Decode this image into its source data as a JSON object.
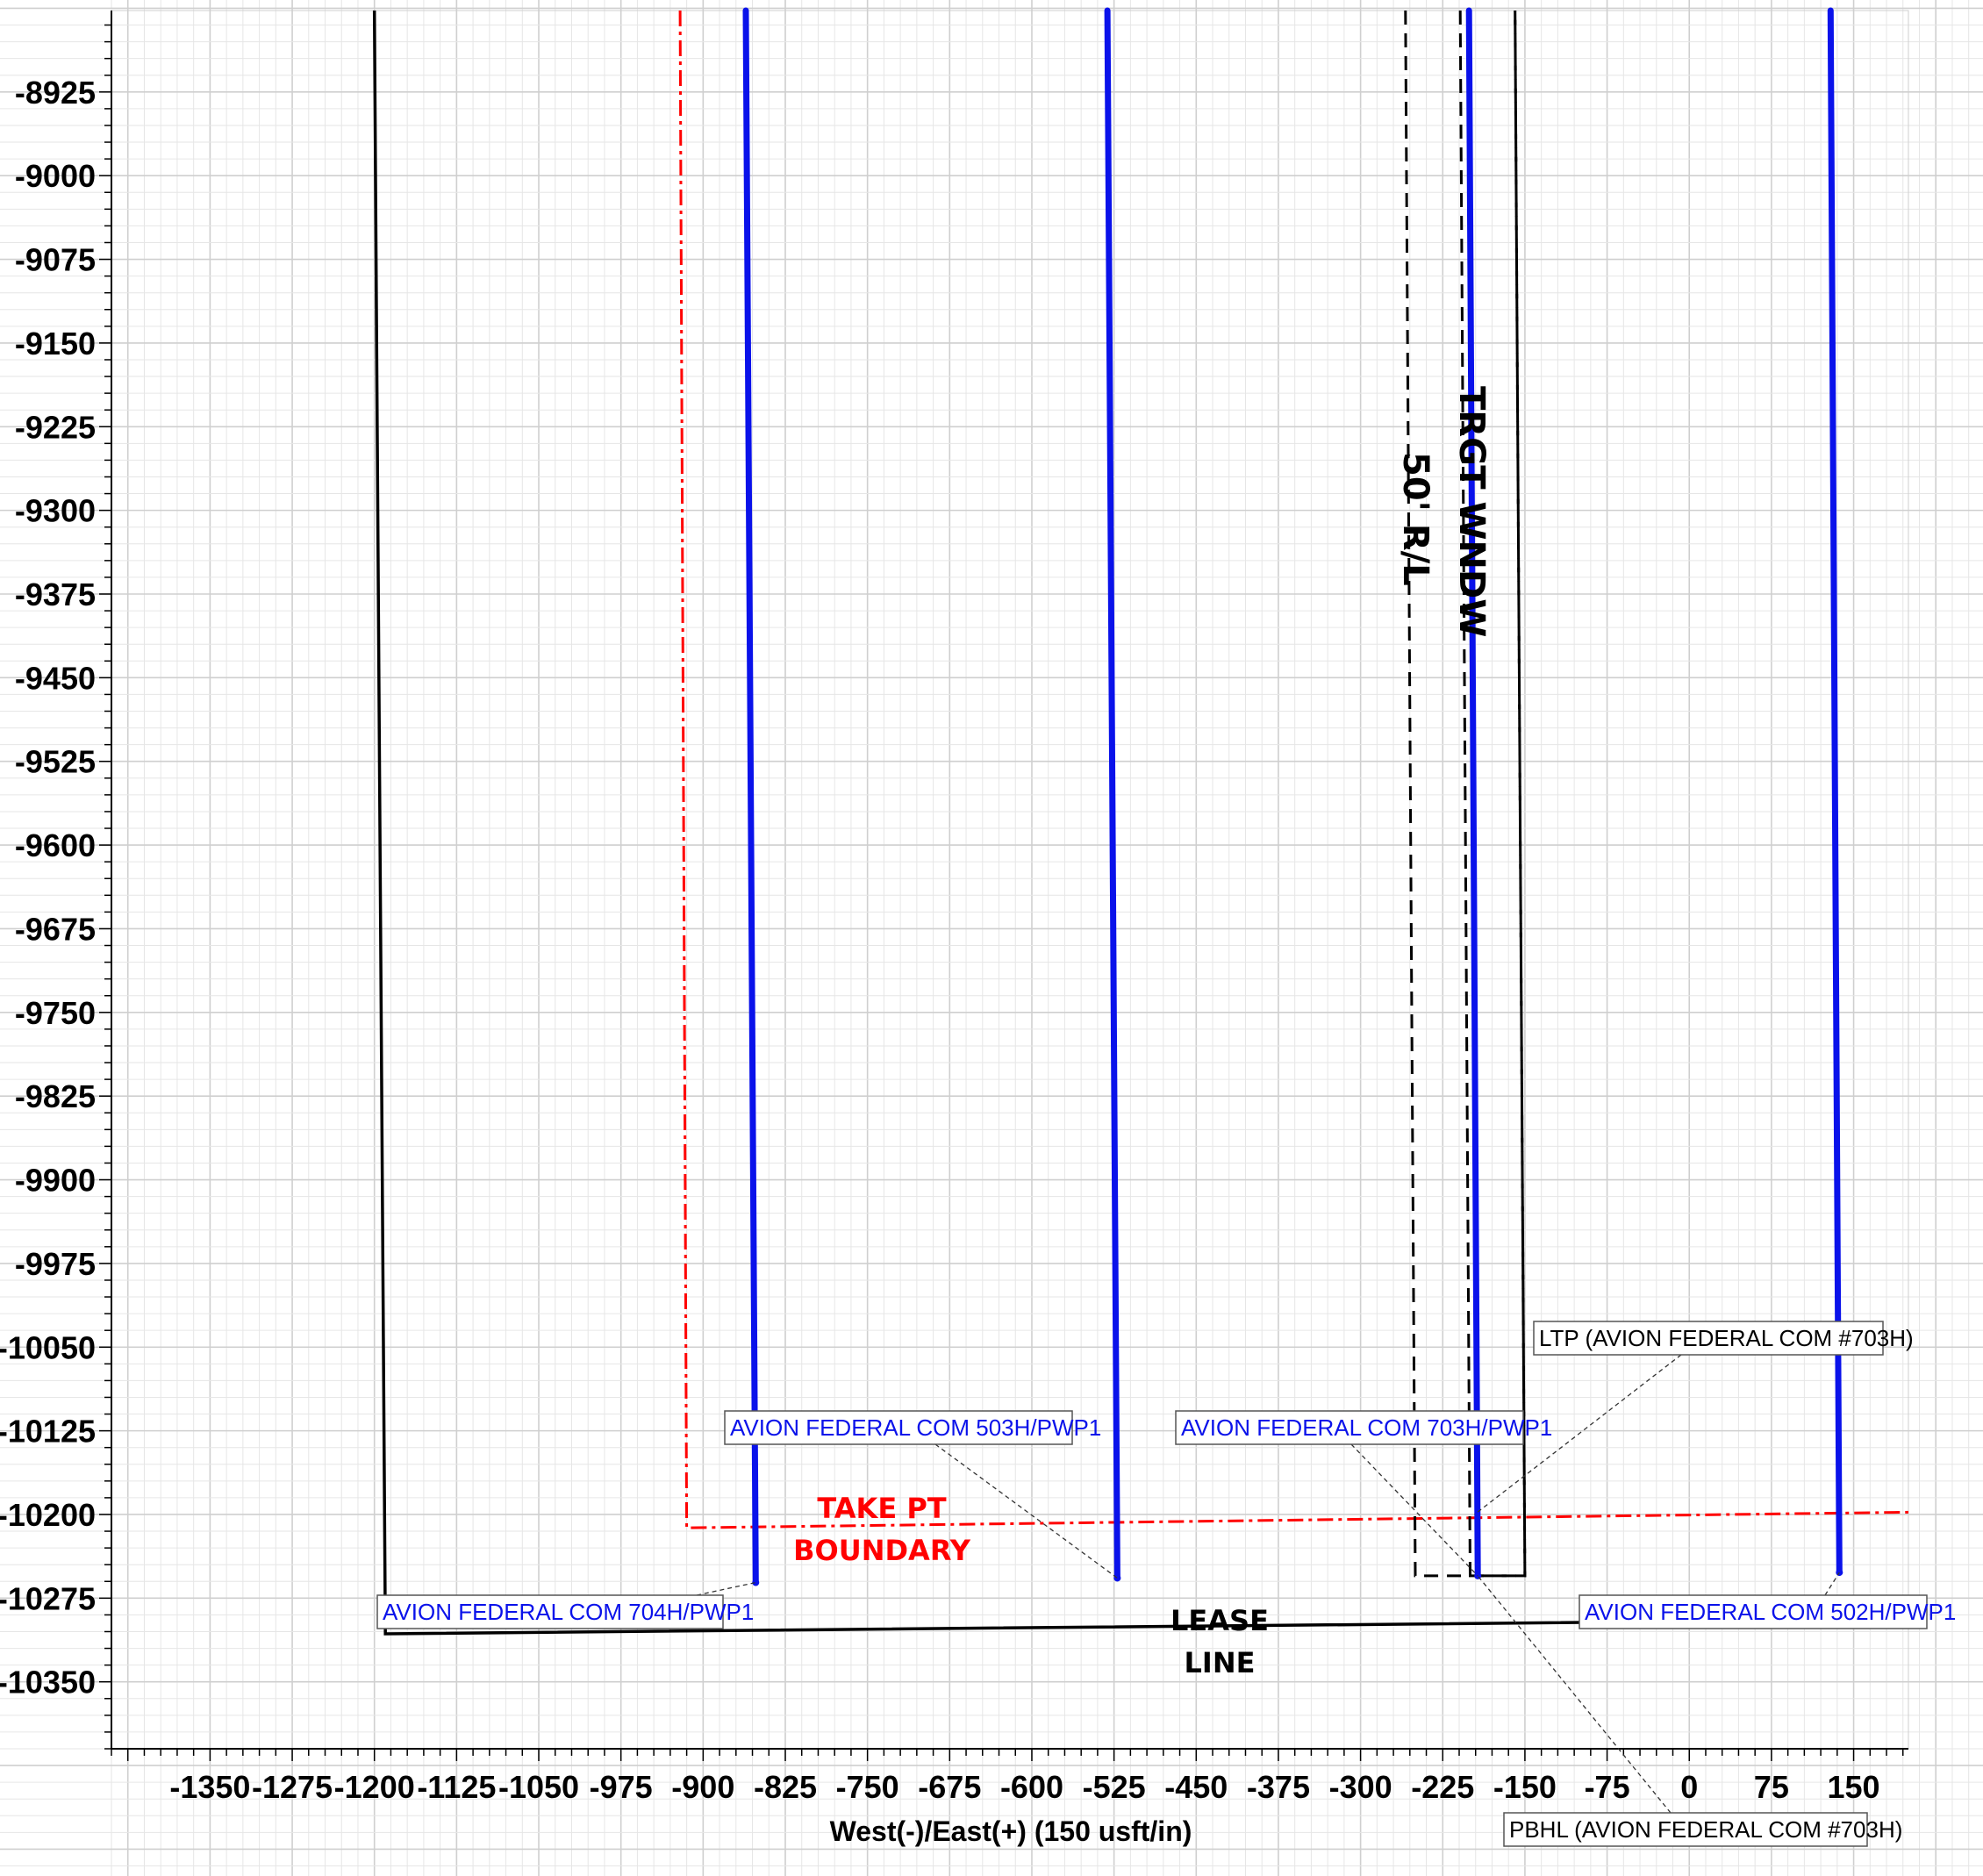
{
  "chart_data": {
    "type": "line",
    "xlabel": "West(-)/East(+) (150 usft/in)",
    "ylabel": "",
    "xlim": [
      -1440,
      200
    ],
    "ylim": [
      -10410,
      -8852
    ],
    "x_ticks": [
      -1350,
      -1275,
      -1200,
      -1125,
      -1050,
      -975,
      -900,
      -825,
      -750,
      -675,
      -600,
      -525,
      -450,
      -375,
      -300,
      -225,
      -150,
      -75,
      0,
      75,
      150
    ],
    "y_ticks": [
      -8925,
      -9000,
      -9075,
      -9150,
      -9225,
      -9300,
      -9375,
      -9450,
      -9525,
      -9600,
      -9675,
      -9750,
      -9825,
      -9900,
      -9975,
      -10050,
      -10125,
      -10200,
      -10275,
      -10350
    ],
    "grid": true,
    "series": [
      {
        "name": "AVION FEDERAL COM 704H/PWP1",
        "color": "#0a12ea",
        "points": [
          [
            -861,
            -8852
          ],
          [
            -852,
            -10261
          ]
        ]
      },
      {
        "name": "AVION FEDERAL COM 503H/PWP1",
        "color": "#0a12ea",
        "points": [
          [
            -531,
            -8852
          ],
          [
            -522,
            -10257
          ]
        ]
      },
      {
        "name": "AVION FEDERAL COM 703H/PWP1",
        "color": "#0a12ea",
        "points": [
          [
            -201,
            -8852
          ],
          [
            -193,
            -10255
          ]
        ]
      },
      {
        "name": "AVION FEDERAL COM 502H/PWP1",
        "color": "#0a12ea",
        "points": [
          [
            129,
            -8852
          ],
          [
            137,
            -10252
          ]
        ]
      }
    ],
    "lines": {
      "lease": {
        "color": "#000000",
        "points": [
          [
            -1200,
            -8852
          ],
          [
            -1190,
            -10307
          ],
          [
            200,
            -10294
          ]
        ]
      },
      "take_point": {
        "color": "#ff0000",
        "points": [
          [
            -921,
            -8852
          ],
          [
            -915,
            -10212
          ],
          [
            200,
            -10198
          ]
        ]
      },
      "rl_50": {
        "color": "#000000",
        "points": [
          [
            -259,
            -8852
          ],
          [
            -250,
            -10255
          ],
          [
            -150,
            -10255
          ],
          [
            -159,
            -8852
          ]
        ]
      },
      "trgt_window": {
        "color": "#000000",
        "points": [
          [
            -209,
            -8852
          ],
          [
            -200,
            -10255
          ],
          [
            -150,
            -10255
          ],
          [
            -159,
            -8852
          ]
        ]
      }
    },
    "callouts": [
      {
        "text": "AVION FEDERAL COM 704H/PWP1",
        "color": "#0a12ea",
        "point": [
          -852,
          -10261
        ]
      },
      {
        "text": "AVION FEDERAL COM 503H/PWP1",
        "color": "#0a12ea",
        "point": [
          -522,
          -10257
        ]
      },
      {
        "text": "AVION FEDERAL COM 703H/PWP1",
        "color": "#0a12ea",
        "point": [
          -193,
          -10255
        ]
      },
      {
        "text": "AVION FEDERAL COM 502H/PWP1",
        "color": "#0a12ea",
        "point": [
          137,
          -10252
        ]
      },
      {
        "text": "LTP (AVION FEDERAL COM #703H)",
        "color": "#000000",
        "point": [
          -196,
          -10200
        ]
      },
      {
        "text": "PBHL (AVION FEDERAL COM #703H)",
        "color": "#000000",
        "point": [
          -193,
          -10255
        ]
      }
    ],
    "annotations": {
      "take_pt": [
        "TAKE PT",
        "BOUNDARY"
      ],
      "lease": [
        "LEASE",
        "LINE"
      ],
      "rl": "50' R/L",
      "trgt": "TRGT WNDW"
    }
  }
}
